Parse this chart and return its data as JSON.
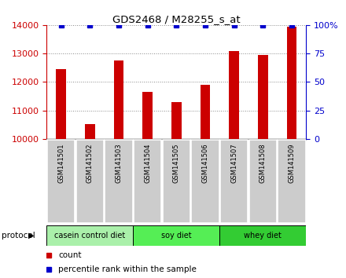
{
  "title": "GDS2468 / M28255_s_at",
  "categories": [
    "GSM141501",
    "GSM141502",
    "GSM141503",
    "GSM141504",
    "GSM141505",
    "GSM141506",
    "GSM141507",
    "GSM141508",
    "GSM141509"
  ],
  "counts": [
    12450,
    10530,
    12750,
    11650,
    11300,
    11900,
    13100,
    12950,
    13950
  ],
  "percentile_ranks": [
    100,
    100,
    100,
    100,
    100,
    100,
    100,
    100,
    100
  ],
  "ylim_left": [
    10000,
    14000
  ],
  "ylim_right": [
    0,
    100
  ],
  "yticks_left": [
    10000,
    11000,
    12000,
    13000,
    14000
  ],
  "yticks_right": [
    0,
    25,
    50,
    75,
    100
  ],
  "bar_color": "#cc0000",
  "dot_color": "#0000cc",
  "groups": [
    {
      "label": "casein control diet",
      "start": 0,
      "end": 3,
      "color": "#aaf0aa"
    },
    {
      "label": "soy diet",
      "start": 3,
      "end": 6,
      "color": "#55ee55"
    },
    {
      "label": "whey diet",
      "start": 6,
      "end": 9,
      "color": "#33cc33"
    }
  ],
  "protocol_label": "protocol",
  "legend_count_label": "count",
  "legend_percentile_label": "percentile rank within the sample",
  "grid_color": "#888888",
  "tick_label_bg": "#cccccc",
  "bar_width": 0.35
}
